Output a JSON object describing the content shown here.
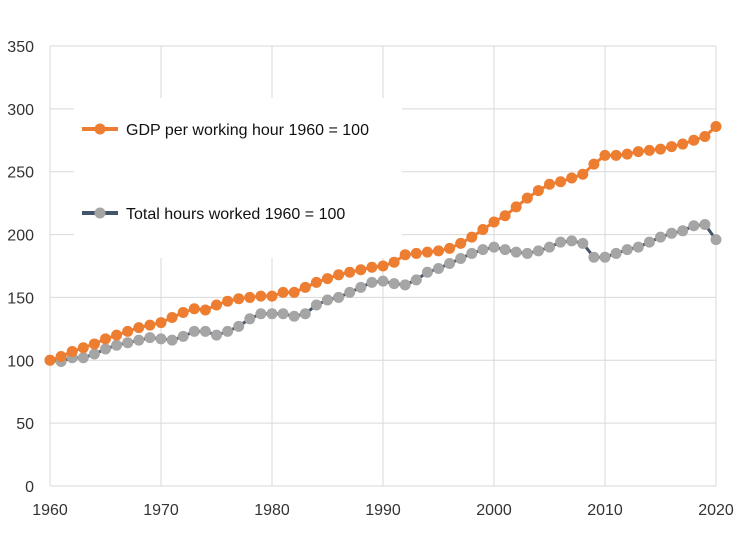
{
  "chart_data": {
    "type": "line",
    "title": "",
    "xlabel": "",
    "ylabel": "",
    "xlim": [
      1960,
      2020
    ],
    "ylim": [
      0,
      350
    ],
    "x_ticks": [
      "1960",
      "1970",
      "1980",
      "1990",
      "2000",
      "2010",
      "2020"
    ],
    "y_ticks": [
      "0",
      "50",
      "100",
      "150",
      "200",
      "250",
      "300",
      "350"
    ],
    "grid": "horizontal and vertical",
    "legend_position": "upper-left inside plot",
    "x": [
      1960,
      1961,
      1962,
      1963,
      1964,
      1965,
      1966,
      1967,
      1968,
      1969,
      1970,
      1971,
      1972,
      1973,
      1974,
      1975,
      1976,
      1977,
      1978,
      1979,
      1980,
      1981,
      1982,
      1983,
      1984,
      1985,
      1986,
      1987,
      1988,
      1989,
      1990,
      1991,
      1992,
      1993,
      1994,
      1995,
      1996,
      1997,
      1998,
      1999,
      2000,
      2001,
      2002,
      2003,
      2004,
      2005,
      2006,
      2007,
      2008,
      2009,
      2010,
      2011,
      2012,
      2013,
      2014,
      2015,
      2016,
      2017,
      2018,
      2019,
      2020
    ],
    "series": [
      {
        "name": "GDP per working hour 1960 = 100",
        "color": "#ED7D31",
        "line_color": "#ED7D31",
        "values": [
          100,
          103,
          107,
          110,
          113,
          117,
          120,
          123,
          126,
          128,
          130,
          134,
          138,
          141,
          140,
          144,
          147,
          149,
          150,
          151,
          151,
          154,
          154,
          158,
          162,
          165,
          168,
          170,
          172,
          174,
          175,
          178,
          184,
          185,
          186,
          187,
          189,
          193,
          198,
          204,
          210,
          215,
          222,
          229,
          235,
          240,
          242,
          245,
          248,
          256,
          263,
          263,
          264,
          266,
          267,
          268,
          270,
          272,
          275,
          278,
          286
        ]
      },
      {
        "name": "Total hours worked 1960 = 100",
        "color": "#A5A5A5",
        "line_color": "#44546A",
        "values": [
          100,
          99,
          102,
          102,
          105,
          109,
          112,
          114,
          116,
          118,
          117,
          116,
          119,
          123,
          123,
          120,
          123,
          127,
          133,
          137,
          137,
          137,
          135,
          137,
          144,
          148,
          150,
          154,
          158,
          162,
          163,
          161,
          160,
          164,
          170,
          173,
          177,
          181,
          185,
          188,
          190,
          188,
          186,
          185,
          187,
          190,
          194,
          195,
          193,
          182,
          182,
          185,
          188,
          190,
          194,
          198,
          201,
          203,
          207,
          208,
          196
        ]
      }
    ]
  }
}
